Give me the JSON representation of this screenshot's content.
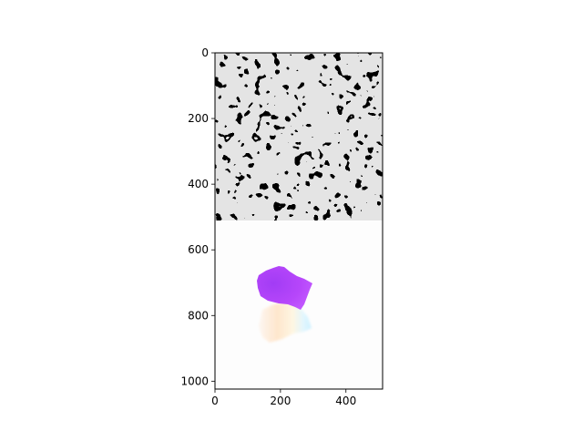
{
  "chart_data": {
    "type": "image",
    "title": "",
    "xlabel": "",
    "ylabel": "",
    "xlim": [
      0,
      512
    ],
    "ylim": [
      1024,
      0
    ],
    "x_ticks": [
      0,
      200,
      400
    ],
    "y_ticks": [
      0,
      200,
      400,
      600,
      800,
      1000
    ],
    "x_tick_labels": [
      "0",
      "200",
      "400"
    ],
    "y_tick_labels": [
      "0",
      "200",
      "400",
      "600",
      "800",
      "1000"
    ],
    "panels": [
      {
        "name": "binary-texture",
        "y_range": [
          0,
          512
        ],
        "colors": [
          "#000000",
          "#c8c8c8"
        ]
      },
      {
        "name": "flow-field",
        "y_range": [
          512,
          1024
        ],
        "background": "#fdfdfd"
      }
    ],
    "blobs": [
      {
        "name": "purple-blob",
        "color": "#b040f8",
        "center": [
          210,
          710
        ]
      },
      {
        "name": "pastel-blob",
        "color": "#ffe6cc",
        "center": [
          225,
          825
        ]
      }
    ]
  }
}
